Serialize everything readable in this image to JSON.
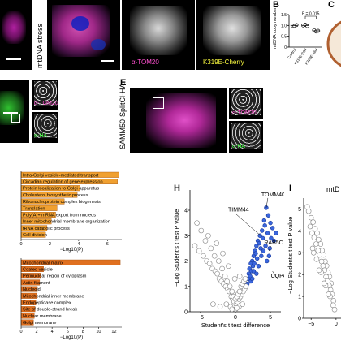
{
  "panels": {
    "A": {
      "row_label": "mtDNA stress",
      "channels": [
        "α-TOM20",
        "K319E-Cherry"
      ]
    },
    "B": {
      "label": "B"
    },
    "C": {
      "label": "C"
    },
    "E": {
      "label": "E",
      "row_label": "SAMM50-SplitCl-HA",
      "channels": [
        "α-TOM20",
        "α-HA"
      ]
    },
    "D": {
      "channels": [
        "α-TOM20",
        "α-HA"
      ]
    },
    "F": {
      "terms_top": [
        "Intra-Golgi vesicle-mediated transport",
        "Circadian regulation of gene expression",
        "Protein localization to Golgi apparatus",
        "Cholesterol biosynthetic process",
        "Ribonucleoprotein complex biogenesis",
        "Translation",
        "Poly(A)+ mRNA export from nucleus",
        "Inner mitochondrial membrane organization",
        "tRNA catabolic process",
        "Cell division"
      ],
      "terms_bottom": [
        "Mitochondrial matrix",
        "Coated vesicle",
        "Perinuclear region of cytoplasm",
        "Actin filament",
        "Nucleoid",
        "Mitochondrial inner membrane",
        "Endopeptidase complex",
        "Site of double-strand break",
        "Nuclear membrane",
        "Golgi membrane"
      ],
      "xlabel_top": "−Log10(P)",
      "xlabel_bottom": "−Log10(P)",
      "ticks_top": [
        "0",
        "2",
        "4",
        "6"
      ],
      "ticks_bottom": [
        "0",
        "2",
        "4",
        "6",
        "8",
        "10",
        "12"
      ]
    },
    "H": {
      "label": "H"
    },
    "I": {
      "label": "I",
      "title": "mtD"
    }
  },
  "chart_data": [
    {
      "type": "scatter",
      "panel": "B",
      "ylabel": "mtDNA copy number",
      "categories": [
        "Control",
        "K319E-24H",
        "K319E-48H"
      ],
      "annotation": "P = 0.015",
      "ylim": [
        0,
        1.5
      ],
      "yticks": [
        0,
        0.5,
        1.0,
        1.5
      ],
      "ytick_labels": [
        "0",
        "0.5",
        "1.0",
        "1.5"
      ],
      "points": [
        {
          "category": "Control",
          "values": [
            1.0,
            0.98,
            1.02
          ]
        },
        {
          "category": "K319E-24H",
          "values": [
            1.0,
            1.03,
            0.97
          ]
        },
        {
          "category": "K319E-48H",
          "values": [
            0.78,
            0.72,
            0.75
          ]
        }
      ]
    },
    {
      "type": "bar",
      "panel": "F-top",
      "categories": [
        "Intra-Golgi vesicle-mediated transport",
        "Circadian regulation of gene expression",
        "Protein localization to Golgi apparatus",
        "Cholesterol biosynthetic process",
        "Ribonucleoprotein complex biogenesis",
        "Translation",
        "Poly(A)+ mRNA export from nucleus",
        "Inner mitochondrial membrane organization",
        "tRNA catabolic process",
        "Cell division"
      ],
      "values": [
        6.8,
        6.7,
        4.1,
        3.9,
        3.0,
        2.5,
        2.4,
        2.1,
        1.8,
        1.7
      ],
      "xlim": [
        0,
        7
      ],
      "color": "#f0a030"
    },
    {
      "type": "bar",
      "panel": "F-bottom",
      "categories": [
        "Mitochondrial matrix",
        "Coated vesicle",
        "Perinuclear region of cytoplasm",
        "Actin filament",
        "Nucleoid",
        "Mitochondrial inner membrane",
        "Endopeptidase complex",
        "Site of double-strand break",
        "Nuclear membrane",
        "Golgi membrane"
      ],
      "values": [
        12.8,
        2.9,
        2.6,
        2.4,
        2.1,
        2.0,
        1.9,
        1.8,
        1.7,
        1.6
      ],
      "xlim": [
        0,
        13
      ],
      "color": "#e07020"
    },
    {
      "type": "scatter",
      "panel": "H",
      "xlabel": "Student's t test difference",
      "ylabel": "−Log Student's t test P value",
      "xlim": [
        -6.5,
        6.5
      ],
      "ylim": [
        0,
        4.8
      ],
      "xticks": [
        -5,
        0,
        5
      ],
      "xtick_labels": [
        "−5",
        "0",
        "5"
      ],
      "yticks": [
        0,
        1,
        2,
        3,
        4
      ],
      "ytick_labels": [
        "0",
        "1",
        "2",
        "3",
        "4"
      ],
      "labeled_points": [
        {
          "name": "TOMM40",
          "x": 4.4,
          "y": 4.1
        },
        {
          "name": "TIMM44",
          "x": 3.6,
          "y": 3.0
        },
        {
          "name": "RAB5C",
          "x": 4.8,
          "y": 2.4
        },
        {
          "name": "COPA",
          "x": 5.3,
          "y": 1.6
        }
      ],
      "series": [
        {
          "name": "significant",
          "color": "#3a66dd",
          "x": [
            4.4,
            4.7,
            5.0,
            5.3,
            4.1,
            3.8,
            3.5,
            4.2,
            4.6,
            5.1,
            3.2,
            3.0,
            2.8,
            3.4,
            3.9,
            4.3,
            2.6,
            2.4,
            2.9,
            3.6,
            4.0,
            4.8,
            2.2,
            2.5,
            3.1,
            3.7,
            4.5,
            2.0,
            2.3,
            2.7,
            3.3,
            1.9,
            2.1,
            2.6,
            3.0,
            1.8,
            2.2,
            1.7,
            2.4,
            5.5,
            5.8,
            4.9
          ],
          "y": [
            4.1,
            3.8,
            3.5,
            3.3,
            3.6,
            3.2,
            3.0,
            3.4,
            3.1,
            2.9,
            2.8,
            2.6,
            2.4,
            2.7,
            2.9,
            2.6,
            2.2,
            2.0,
            2.3,
            2.5,
            2.4,
            2.2,
            1.9,
            1.8,
            2.1,
            2.2,
            2.0,
            1.7,
            1.6,
            1.9,
            1.8,
            1.5,
            1.4,
            1.6,
            1.5,
            1.3,
            1.2,
            1.1,
            1.3,
            2.8,
            3.1,
            2.5
          ]
        },
        {
          "name": "non-significant",
          "color": "#888888",
          "x": [
            -5.8,
            -5.2,
            -4.6,
            -4.1,
            -3.7,
            -3.3,
            -2.9,
            -2.6,
            -2.3,
            -2.0,
            -1.7,
            -1.4,
            -1.1,
            -0.9,
            -0.6,
            -0.4,
            -0.2,
            0.1,
            0.3,
            0.5,
            0.7,
            0.9,
            1.1,
            1.3,
            1.5,
            -4.9,
            -4.3,
            -3.5,
            -3.0,
            -2.4,
            -1.9,
            -1.5,
            -1.2,
            -0.8,
            -0.5,
            -0.3,
            0.0,
            0.2,
            0.4,
            0.6,
            0.8,
            1.0,
            1.2,
            -5.5,
            -3.9,
            -2.7,
            -1.8,
            -1.0,
            -0.1,
            0.6,
            1.4,
            -3.2,
            -2.2,
            -1.3,
            -0.7,
            0.0,
            0.5,
            1.0,
            -0.5,
            0.2
          ],
          "y": [
            2.6,
            2.4,
            2.2,
            2.0,
            1.9,
            1.7,
            1.6,
            1.5,
            1.3,
            1.2,
            1.1,
            1.0,
            0.9,
            0.8,
            0.6,
            0.5,
            0.4,
            0.3,
            0.4,
            0.5,
            0.6,
            0.7,
            0.8,
            0.9,
            1.0,
            3.2,
            2.8,
            2.5,
            2.2,
            2.0,
            1.7,
            1.4,
            1.2,
            1.0,
            0.8,
            0.6,
            0.5,
            0.6,
            0.7,
            0.8,
            1.0,
            1.1,
            1.2,
            3.5,
            3.0,
            2.7,
            2.3,
            1.8,
            1.3,
            1.4,
            1.3,
            0.3,
            0.2,
            0.3,
            0.2,
            0.1,
            0.2,
            0.3,
            0.1,
            0.15
          ]
        }
      ]
    },
    {
      "type": "scatter",
      "panel": "I",
      "xlabel": "",
      "ylabel": "−Log Student's t test P value",
      "xlim": [
        -6.5,
        1
      ],
      "ylim": [
        0,
        5.5
      ],
      "xticks": [
        -5,
        0
      ],
      "xtick_labels": [
        "−5",
        "0"
      ],
      "yticks": [
        0,
        1,
        2,
        3,
        4,
        5
      ],
      "ytick_labels": [
        "0",
        "1",
        "2",
        "3",
        "4",
        "5"
      ],
      "series": [
        {
          "name": "non-significant",
          "color": "#888888",
          "x": [
            -5.5,
            -5.0,
            -4.6,
            -4.2,
            -3.8,
            -3.5,
            -3.1,
            -2.8,
            -2.5,
            -2.2,
            -1.9,
            -1.6,
            -1.3,
            -1.0,
            -5.2,
            -4.8,
            -4.4,
            -4.0,
            -3.6,
            -3.3,
            -2.9,
            -2.6,
            -2.3,
            -2.0,
            -1.7,
            -1.4,
            -1.1,
            -0.8,
            -0.5,
            -4.7,
            -3.9,
            -3.0,
            -2.1,
            -1.2,
            -5.8,
            -4.5,
            -3.4,
            -2.4,
            -1.5,
            -0.6,
            -0.3
          ],
          "y": [
            4.9,
            4.6,
            4.4,
            4.1,
            3.9,
            3.6,
            3.4,
            3.1,
            2.9,
            2.6,
            2.4,
            2.1,
            1.9,
            1.6,
            4.2,
            3.9,
            3.7,
            3.4,
            3.1,
            2.9,
            2.6,
            2.4,
            2.2,
            1.9,
            1.7,
            1.5,
            1.3,
            1.1,
            0.8,
            3.2,
            2.7,
            2.1,
            1.5,
            1.0,
            5.1,
            3.0,
            2.2,
            1.6,
            1.1,
            0.6,
            0.4
          ]
        }
      ]
    }
  ]
}
